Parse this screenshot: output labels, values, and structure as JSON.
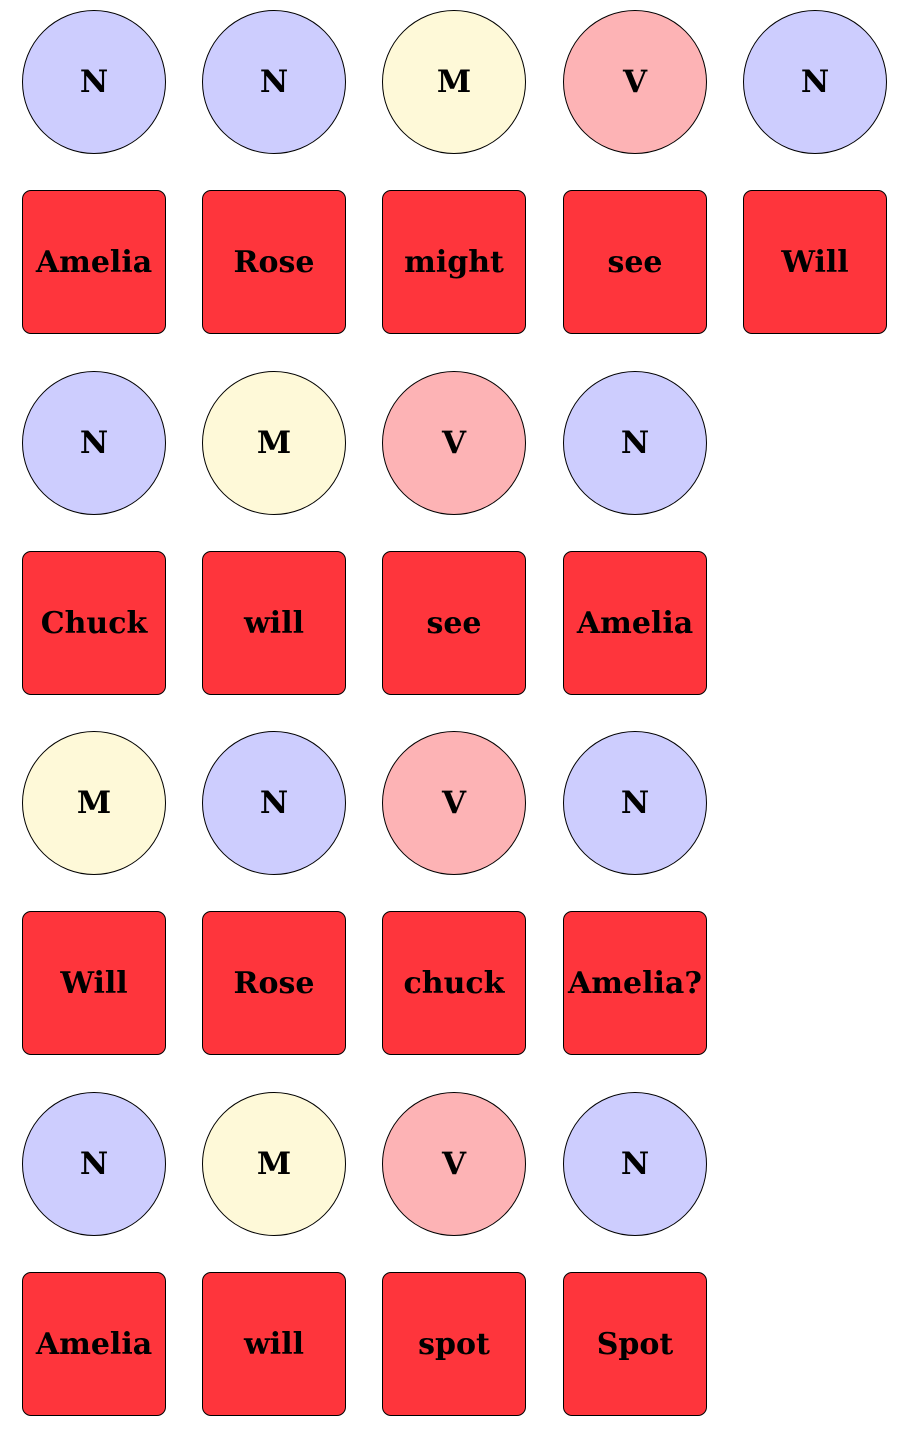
{
  "colors": {
    "N": "#cdcdfe",
    "M": "#fef9d8",
    "V": "#fdb3b5",
    "word": "#fe353c",
    "stroke": "#000000"
  },
  "sentences": [
    {
      "tags": [
        "N",
        "N",
        "M",
        "V",
        "N"
      ],
      "words": [
        "Amelia",
        "Rose",
        "might",
        "see",
        "Will"
      ]
    },
    {
      "tags": [
        "N",
        "M",
        "V",
        "N"
      ],
      "words": [
        "Chuck",
        "will",
        "see",
        "Amelia"
      ]
    },
    {
      "tags": [
        "M",
        "N",
        "V",
        "N"
      ],
      "words": [
        "Will",
        "Rose",
        "chuck",
        "Amelia?"
      ]
    },
    {
      "tags": [
        "N",
        "M",
        "V",
        "N"
      ],
      "words": [
        "Amelia",
        "will",
        "spot",
        "Spot"
      ]
    }
  ]
}
